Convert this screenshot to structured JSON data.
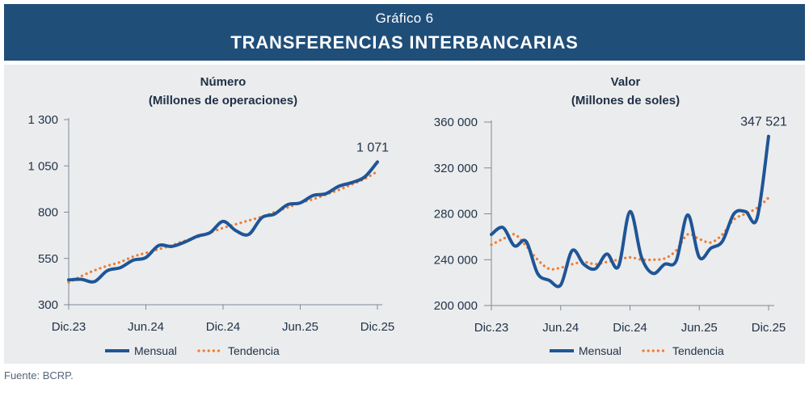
{
  "header": {
    "superscript": "Gráfico 6",
    "title": "TRANSFERENCIAS INTERBANCARIAS"
  },
  "source": "Fuente: BCRP.",
  "colors": {
    "header_bg": "#1f4e79",
    "mensual": "#1f5597",
    "tendencia": "#ed7d31",
    "panel_bg": "#ebeced"
  },
  "chart_data": [
    {
      "type": "line",
      "title": "Número",
      "subtitle": "(Millones de operaciones)",
      "ylim": [
        300,
        1300
      ],
      "yticks": [
        300,
        550,
        800,
        1050,
        1300
      ],
      "ytick_labels": [
        "300",
        "550",
        "800",
        "1 050",
        "1 300"
      ],
      "xtick_labels": [
        "Dic.23",
        "Jun.24",
        "Dic.24",
        "Jun.25",
        "Dic.25"
      ],
      "xtick_positions": [
        0,
        6,
        12,
        18,
        24
      ],
      "x": [
        0,
        1,
        2,
        3,
        4,
        5,
        6,
        7,
        8,
        9,
        10,
        11,
        12,
        13,
        14,
        15,
        16,
        17,
        18,
        19,
        20,
        21,
        22,
        23,
        24
      ],
      "series": [
        {
          "name": "Mensual",
          "style": "solid",
          "values": [
            434,
            437,
            425,
            484,
            500,
            540,
            555,
            620,
            615,
            638,
            670,
            690,
            750,
            700,
            680,
            770,
            790,
            840,
            850,
            890,
            900,
            940,
            960,
            990,
            1071
          ]
        },
        {
          "name": "Tendencia",
          "style": "dotted",
          "values": [
            420,
            455,
            485,
            510,
            530,
            560,
            580,
            600,
            620,
            645,
            665,
            690,
            715,
            735,
            755,
            775,
            800,
            825,
            850,
            870,
            895,
            920,
            950,
            980,
            1020
          ]
        }
      ],
      "annotation": {
        "text": "1 071",
        "x": 24,
        "y": 1071
      },
      "legend": "bottom"
    },
    {
      "type": "line",
      "title": "Valor",
      "subtitle": "(Millones de soles)",
      "ylim": [
        200000,
        360000
      ],
      "yticks": [
        200000,
        240000,
        280000,
        320000,
        360000
      ],
      "ytick_labels": [
        "200 000",
        "240 000",
        "280 000",
        "320 000",
        "360 000"
      ],
      "xtick_labels": [
        "Dic.23",
        "Jun.24",
        "Dic.24",
        "Jun.25",
        "Dic.25"
      ],
      "xtick_positions": [
        0,
        6,
        12,
        18,
        24
      ],
      "x": [
        0,
        1,
        2,
        3,
        4,
        5,
        6,
        7,
        8,
        9,
        10,
        11,
        12,
        13,
        14,
        15,
        16,
        17,
        18,
        19,
        20,
        21,
        22,
        23,
        24
      ],
      "series": [
        {
          "name": "Mensual",
          "style": "solid",
          "values": [
            262000,
            268000,
            252000,
            256000,
            228000,
            222000,
            218000,
            248000,
            236000,
            232000,
            245000,
            234000,
            282000,
            242000,
            228000,
            236000,
            239000,
            279000,
            242000,
            250000,
            256000,
            280000,
            282000,
            276000,
            347521
          ]
        },
        {
          "name": "Tendencia",
          "style": "dotted",
          "values": [
            253000,
            258000,
            262000,
            252000,
            240000,
            232000,
            233000,
            236000,
            238000,
            236000,
            238000,
            240000,
            242000,
            240000,
            240000,
            241000,
            248000,
            262000,
            258000,
            255000,
            262000,
            275000,
            280000,
            285000,
            294000
          ]
        }
      ],
      "annotation": {
        "text": "347 521",
        "x": 24,
        "y": 347521
      },
      "legend": "bottom"
    }
  ]
}
